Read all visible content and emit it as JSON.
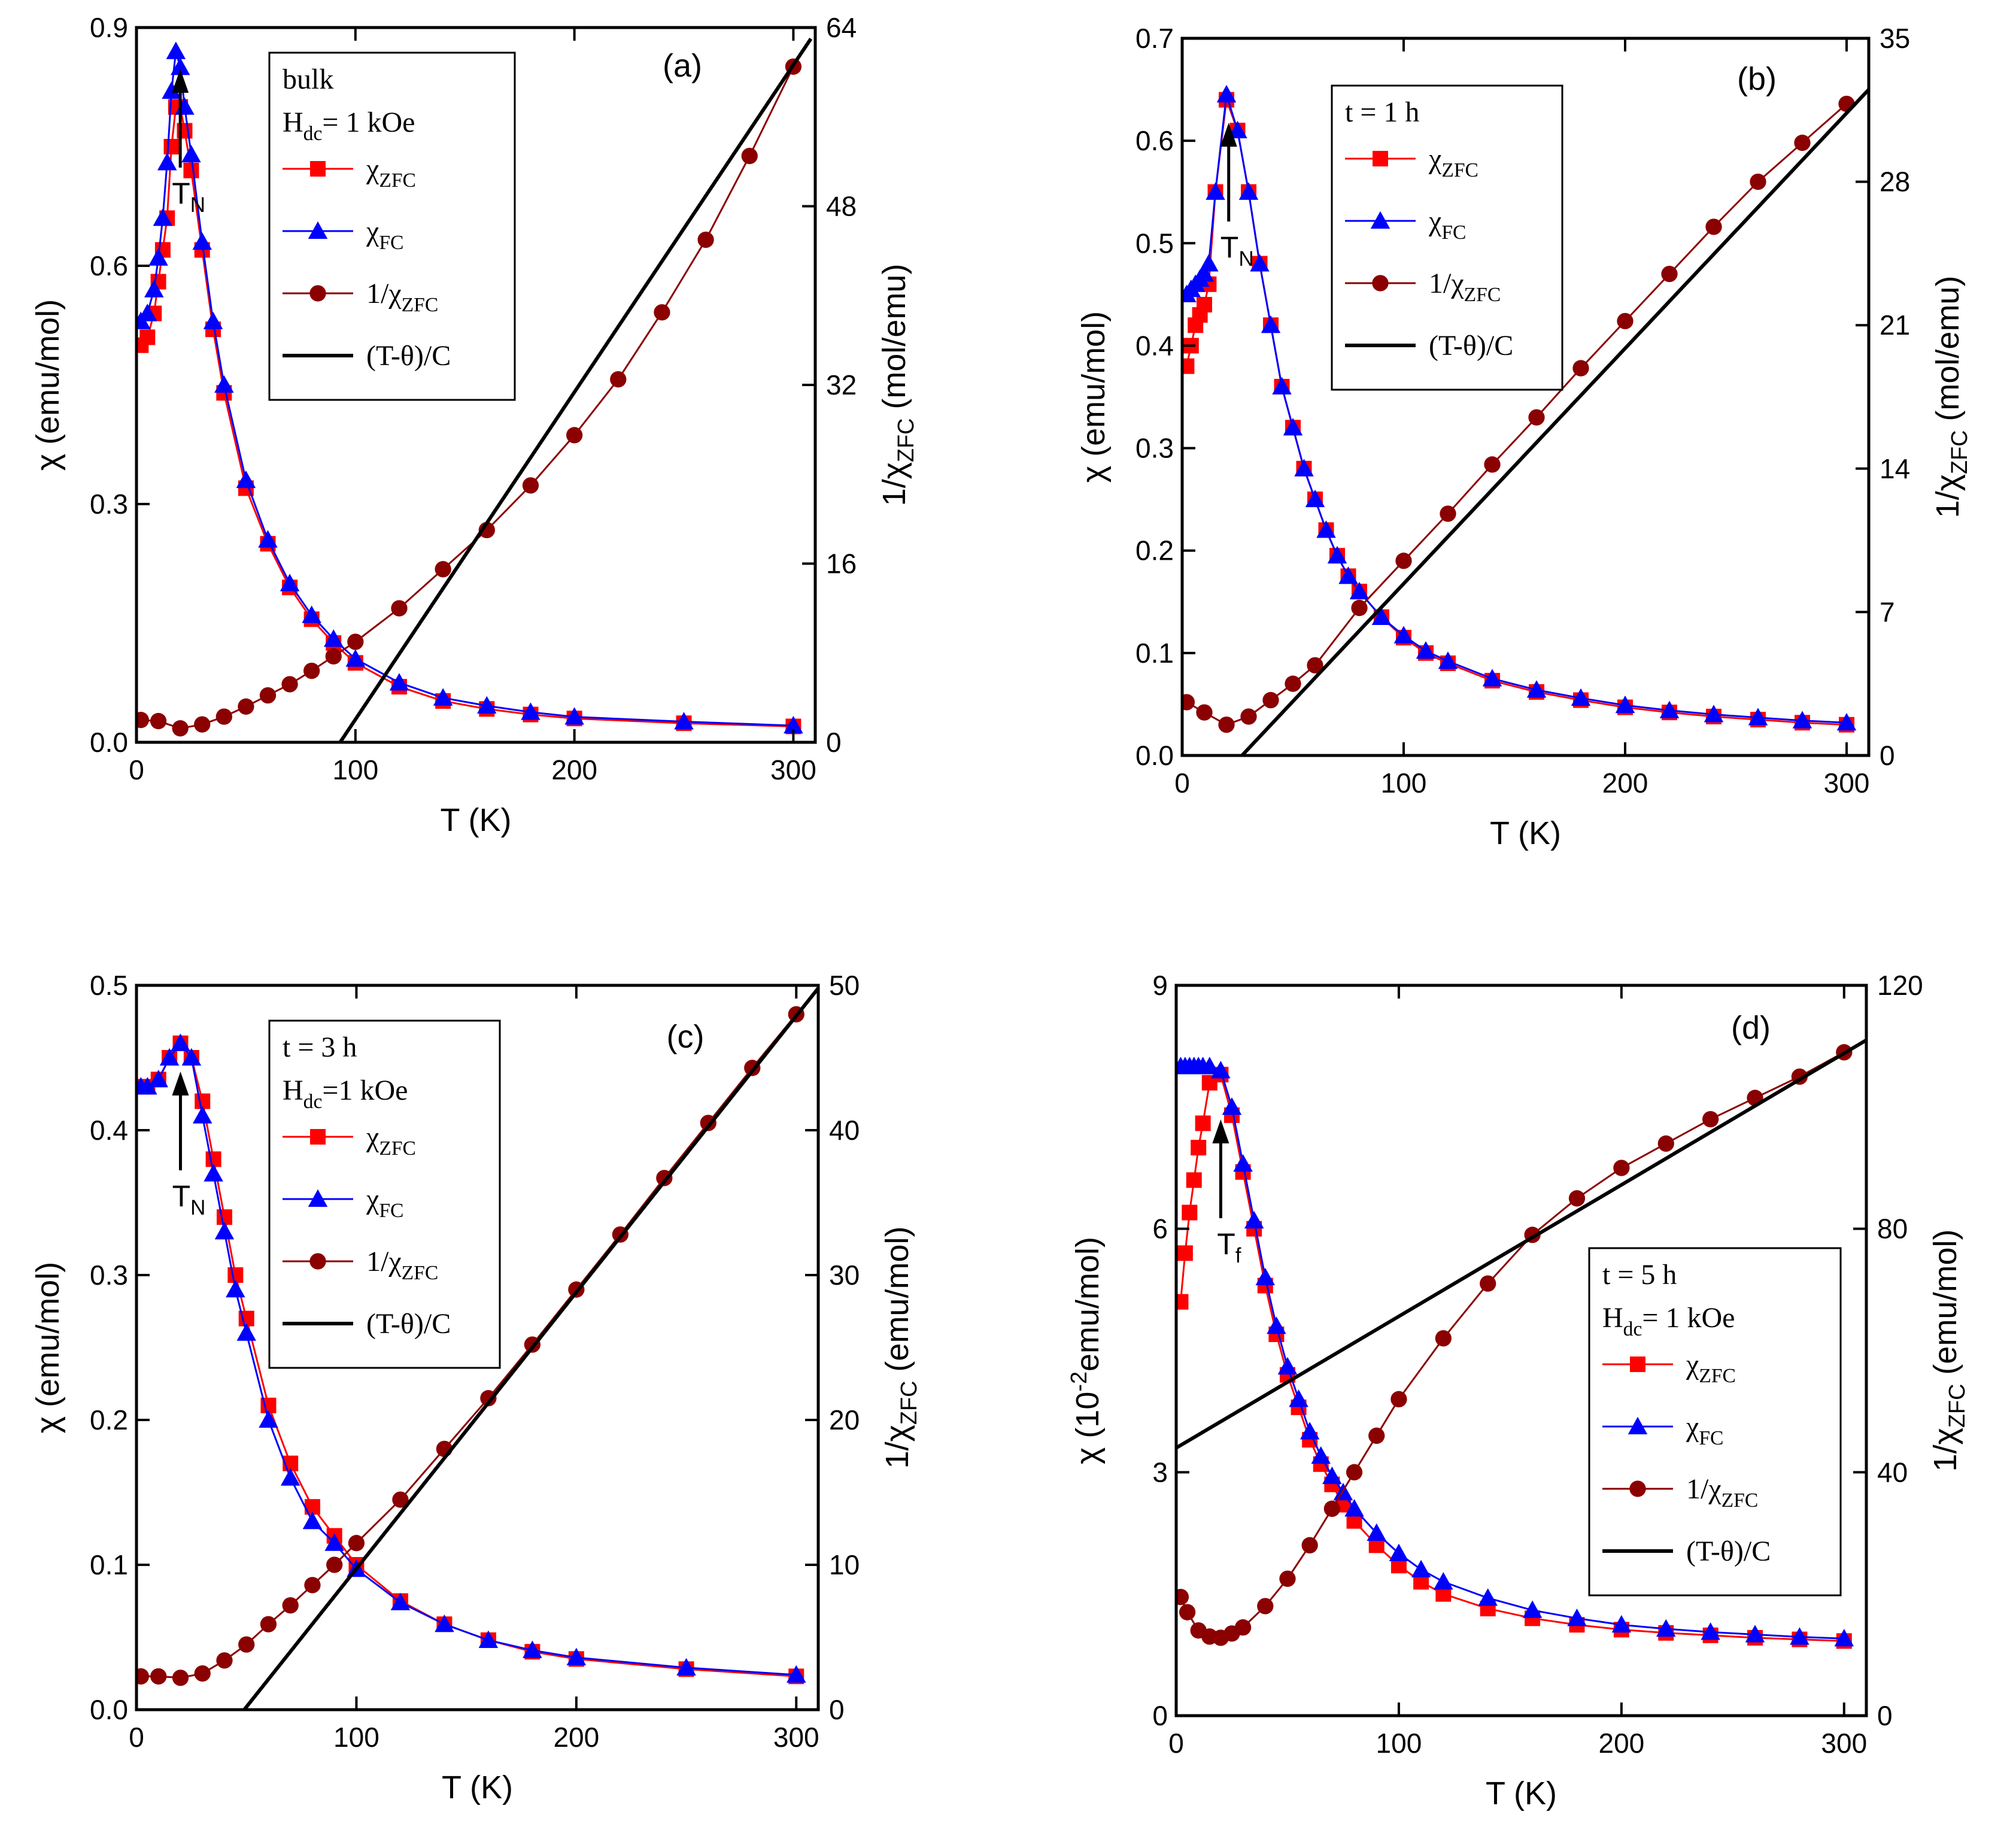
{
  "chart_data": [
    {
      "id": "a",
      "type": "scatter",
      "panel_label": "(a)",
      "xlabel": "T  (K)",
      "ylabel": "χ  (emu/mol)",
      "ylabel2": "1/χ_ZFC  (mol/emu)",
      "xlim": [
        0,
        310
      ],
      "ylim": [
        0,
        0.9
      ],
      "y2lim": [
        0,
        64
      ],
      "xticks": [
        0,
        100,
        200,
        300
      ],
      "yticks": [
        "0.0",
        "0.3",
        "0.6",
        "0.9"
      ],
      "yticks_val": [
        0,
        0.3,
        0.6,
        0.9
      ],
      "y2ticks": [
        0,
        16,
        32,
        48,
        64
      ],
      "legend": {
        "lines": [
          "bulk",
          "H_dc= 1 kOe"
        ],
        "entries": [
          "χ_ZFC",
          "χ_FC",
          "1/χ_ZFC",
          "(T-θ)/C"
        ]
      },
      "annotation": {
        "text": "T_N",
        "x": 20
      },
      "series": [
        {
          "name": "χ_ZFC",
          "marker": "square",
          "color": "#ff0000",
          "x": [
            2,
            5,
            8,
            10,
            12,
            14,
            16,
            18,
            20,
            22,
            25,
            30,
            35,
            40,
            50,
            60,
            70,
            80,
            90,
            100,
            120,
            140,
            160,
            180,
            200,
            250,
            300
          ],
          "y": [
            0.5,
            0.51,
            0.54,
            0.58,
            0.62,
            0.66,
            0.75,
            0.8,
            0.8,
            0.77,
            0.72,
            0.62,
            0.52,
            0.44,
            0.32,
            0.25,
            0.195,
            0.155,
            0.125,
            0.1,
            0.07,
            0.052,
            0.042,
            0.035,
            0.03,
            0.024,
            0.02
          ]
        },
        {
          "name": "χ_FC",
          "marker": "triangle",
          "color": "#0000ff",
          "x": [
            2,
            5,
            8,
            10,
            12,
            14,
            16,
            18,
            20,
            22,
            25,
            30,
            35,
            40,
            50,
            60,
            70,
            80,
            90,
            100,
            120,
            140,
            160,
            180,
            200,
            250,
            300
          ],
          "y": [
            0.53,
            0.54,
            0.57,
            0.61,
            0.66,
            0.73,
            0.82,
            0.87,
            0.85,
            0.8,
            0.74,
            0.63,
            0.53,
            0.45,
            0.33,
            0.255,
            0.2,
            0.16,
            0.13,
            0.105,
            0.075,
            0.056,
            0.046,
            0.038,
            0.032,
            0.026,
            0.021
          ]
        },
        {
          "name": "1/χ_ZFC",
          "marker": "circle",
          "color": "#8b0000",
          "axis": "right",
          "x": [
            2,
            10,
            20,
            30,
            40,
            50,
            60,
            70,
            80,
            90,
            100,
            120,
            140,
            160,
            180,
            200,
            220,
            240,
            260,
            280,
            300
          ],
          "y": [
            2.0,
            1.9,
            1.25,
            1.6,
            2.3,
            3.2,
            4.2,
            5.2,
            6.4,
            7.7,
            9.0,
            12.0,
            15.5,
            19.0,
            23.0,
            27.5,
            32.5,
            38.5,
            45.0,
            52.5,
            60.5
          ]
        },
        {
          "name": "(T-θ)/C",
          "marker": "none",
          "color": "#000000",
          "axis": "right",
          "x": [
            93,
            308
          ],
          "y": [
            0,
            63
          ]
        }
      ]
    },
    {
      "id": "b",
      "type": "scatter",
      "panel_label": "(b)",
      "xlabel": "T  (K)",
      "ylabel": "χ  (emu/mol)",
      "ylabel2": "1/χ_ZFC  (mol/emu)",
      "xlim": [
        0,
        310
      ],
      "ylim": [
        0,
        0.7
      ],
      "y2lim": [
        0,
        35
      ],
      "xticks": [
        0,
        100,
        200,
        300
      ],
      "yticks": [
        "0.0",
        "0.1",
        "0.2",
        "0.3",
        "0.4",
        "0.5",
        "0.6",
        "0.7"
      ],
      "yticks_val": [
        0,
        0.1,
        0.2,
        0.3,
        0.4,
        0.5,
        0.6,
        0.7
      ],
      "y2ticks": [
        0,
        7,
        14,
        21,
        28,
        35
      ],
      "legend": {
        "lines": [
          "t = 1 h"
        ],
        "entries": [
          "χ_ZFC",
          "χ_FC",
          "1/χ_ZFC",
          "(T-θ)/C"
        ]
      },
      "annotation": {
        "text": "T_N",
        "x": 21
      },
      "series": [
        {
          "name": "χ_ZFC",
          "marker": "square",
          "color": "#ff0000",
          "x": [
            2,
            4,
            6,
            8,
            10,
            12,
            15,
            20,
            25,
            30,
            35,
            40,
            45,
            50,
            55,
            60,
            65,
            70,
            75,
            80,
            90,
            100,
            110,
            120,
            140,
            160,
            180,
            200,
            220,
            240,
            260,
            280,
            300
          ],
          "y": [
            0.38,
            0.4,
            0.42,
            0.43,
            0.44,
            0.46,
            0.55,
            0.64,
            0.61,
            0.55,
            0.48,
            0.42,
            0.36,
            0.32,
            0.28,
            0.25,
            0.22,
            0.195,
            0.175,
            0.16,
            0.135,
            0.115,
            0.1,
            0.09,
            0.073,
            0.062,
            0.054,
            0.047,
            0.042,
            0.038,
            0.035,
            0.032,
            0.03
          ]
        },
        {
          "name": "χ_FC",
          "marker": "triangle",
          "color": "#0000ff",
          "x": [
            2,
            4,
            6,
            8,
            10,
            12,
            15,
            20,
            25,
            30,
            35,
            40,
            45,
            50,
            55,
            60,
            65,
            70,
            75,
            80,
            90,
            100,
            110,
            120,
            140,
            160,
            180,
            200,
            220,
            240,
            260,
            280,
            300
          ],
          "y": [
            0.45,
            0.455,
            0.46,
            0.465,
            0.47,
            0.48,
            0.55,
            0.645,
            0.61,
            0.55,
            0.48,
            0.42,
            0.36,
            0.32,
            0.28,
            0.25,
            0.22,
            0.195,
            0.175,
            0.16,
            0.135,
            0.117,
            0.102,
            0.092,
            0.075,
            0.064,
            0.056,
            0.049,
            0.044,
            0.04,
            0.037,
            0.034,
            0.032
          ]
        },
        {
          "name": "1/χ_ZFC",
          "marker": "circle",
          "color": "#8b0000",
          "axis": "right",
          "x": [
            2,
            10,
            20,
            30,
            40,
            50,
            60,
            80,
            100,
            120,
            140,
            160,
            180,
            200,
            220,
            240,
            260,
            280,
            300
          ],
          "y": [
            2.6,
            2.1,
            1.5,
            1.9,
            2.7,
            3.5,
            4.4,
            7.2,
            9.5,
            11.8,
            14.2,
            16.5,
            18.9,
            21.2,
            23.5,
            25.8,
            28.0,
            29.9,
            31.8
          ]
        },
        {
          "name": "(T-θ)/C",
          "marker": "none",
          "color": "#000000",
          "axis": "right",
          "x": [
            27,
            310
          ],
          "y": [
            0,
            32.5
          ]
        }
      ]
    },
    {
      "id": "c",
      "type": "scatter",
      "panel_label": "(c)",
      "xlabel": "T  (K)",
      "ylabel": "χ  (emu/mol)",
      "ylabel2": "1/χ_ZFC  (emu/mol)",
      "xlim": [
        0,
        310
      ],
      "ylim": [
        0,
        0.5
      ],
      "y2lim": [
        0,
        50
      ],
      "xticks": [
        0,
        100,
        200,
        300
      ],
      "yticks": [
        "0.0",
        "0.1",
        "0.2",
        "0.3",
        "0.4",
        "0.5"
      ],
      "yticks_val": [
        0,
        0.1,
        0.2,
        0.3,
        0.4,
        0.5
      ],
      "y2ticks": [
        0,
        10,
        20,
        30,
        40,
        50
      ],
      "legend": {
        "lines": [
          "t = 3 h",
          "H_dc=1 kOe"
        ],
        "entries": [
          "χ_ZFC",
          "χ_FC",
          "1/χ_ZFC",
          "(T-θ)/C"
        ]
      },
      "annotation": {
        "text": "T_N",
        "x": 20
      },
      "series": [
        {
          "name": "χ_ZFC",
          "marker": "square",
          "color": "#ff0000",
          "x": [
            2,
            5,
            10,
            15,
            20,
            25,
            30,
            35,
            40,
            45,
            50,
            60,
            70,
            80,
            90,
            100,
            120,
            140,
            160,
            180,
            200,
            250,
            300
          ],
          "y": [
            0.43,
            0.43,
            0.435,
            0.45,
            0.46,
            0.45,
            0.42,
            0.38,
            0.34,
            0.3,
            0.27,
            0.21,
            0.17,
            0.14,
            0.12,
            0.1,
            0.075,
            0.059,
            0.048,
            0.04,
            0.035,
            0.028,
            0.023
          ]
        },
        {
          "name": "χ_FC",
          "marker": "triangle",
          "color": "#0000ff",
          "x": [
            2,
            5,
            10,
            15,
            20,
            25,
            30,
            35,
            40,
            45,
            50,
            60,
            70,
            80,
            90,
            100,
            120,
            140,
            160,
            180,
            200,
            250,
            300
          ],
          "y": [
            0.43,
            0.43,
            0.435,
            0.45,
            0.46,
            0.45,
            0.41,
            0.37,
            0.33,
            0.29,
            0.26,
            0.2,
            0.16,
            0.13,
            0.115,
            0.097,
            0.074,
            0.059,
            0.048,
            0.041,
            0.036,
            0.029,
            0.024
          ]
        },
        {
          "name": "1/χ_ZFC",
          "marker": "circle",
          "color": "#8b0000",
          "axis": "right",
          "x": [
            2,
            10,
            20,
            30,
            40,
            50,
            60,
            70,
            80,
            90,
            100,
            120,
            140,
            160,
            180,
            200,
            220,
            240,
            260,
            280,
            300
          ],
          "y": [
            2.3,
            2.3,
            2.2,
            2.5,
            3.4,
            4.5,
            5.9,
            7.2,
            8.6,
            10.0,
            11.5,
            14.5,
            18.0,
            21.5,
            25.2,
            29.0,
            32.8,
            36.7,
            40.5,
            44.3,
            48.0
          ]
        },
        {
          "name": "(T-θ)/C",
          "marker": "none",
          "color": "#000000",
          "axis": "right",
          "x": [
            49,
            310
          ],
          "y": [
            0,
            49.8
          ]
        }
      ]
    },
    {
      "id": "d",
      "type": "scatter",
      "panel_label": "(d)",
      "xlabel": "T  (K)",
      "ylabel": "χ  (10^-2emu/mol)",
      "ylabel2": "1/χ_ZFC  (emu/mol)",
      "xlim": [
        0,
        310
      ],
      "ylim": [
        0,
        9
      ],
      "y2lim": [
        0,
        120
      ],
      "xticks": [
        0,
        100,
        200,
        300
      ],
      "yticks": [
        "0",
        "3",
        "6",
        "9"
      ],
      "yticks_val": [
        0,
        3,
        6,
        9
      ],
      "y2ticks": [
        0,
        40,
        80,
        120
      ],
      "legend": {
        "lines": [
          "t = 5 h",
          "H_dc= 1 kOe"
        ],
        "entries": [
          "χ_ZFC",
          "χ_FC",
          "1/χ_ZFC",
          "(T-θ)/C"
        ]
      },
      "annotation": {
        "text": "T_f",
        "x": 20
      },
      "series": [
        {
          "name": "χ_ZFC",
          "marker": "square",
          "color": "#ff0000",
          "x": [
            2,
            4,
            6,
            8,
            10,
            12,
            15,
            20,
            25,
            30,
            35,
            40,
            45,
            50,
            55,
            60,
            65,
            70,
            75,
            80,
            90,
            100,
            110,
            120,
            140,
            160,
            180,
            200,
            220,
            240,
            260,
            280,
            300
          ],
          "y": [
            5.1,
            5.7,
            6.2,
            6.6,
            7.0,
            7.3,
            7.8,
            7.9,
            7.4,
            6.7,
            6.0,
            5.3,
            4.7,
            4.2,
            3.8,
            3.4,
            3.1,
            2.85,
            2.6,
            2.4,
            2.1,
            1.85,
            1.65,
            1.5,
            1.32,
            1.2,
            1.12,
            1.06,
            1.02,
            0.99,
            0.96,
            0.94,
            0.92
          ]
        },
        {
          "name": "χ_FC",
          "marker": "triangle",
          "color": "#0000ff",
          "x": [
            2,
            4,
            6,
            8,
            10,
            12,
            15,
            20,
            25,
            30,
            35,
            40,
            45,
            50,
            55,
            60,
            65,
            70,
            75,
            80,
            90,
            100,
            110,
            120,
            140,
            160,
            180,
            200,
            220,
            240,
            260,
            280,
            300
          ],
          "y": [
            8.0,
            8.0,
            8.0,
            8.0,
            8.0,
            8.0,
            8.0,
            7.95,
            7.5,
            6.8,
            6.1,
            5.4,
            4.8,
            4.3,
            3.9,
            3.5,
            3.2,
            2.95,
            2.75,
            2.55,
            2.25,
            2.0,
            1.8,
            1.65,
            1.45,
            1.3,
            1.2,
            1.12,
            1.07,
            1.03,
            1.0,
            0.97,
            0.95
          ]
        },
        {
          "name": "1/χ_ZFC",
          "marker": "circle",
          "color": "#8b0000",
          "axis": "right",
          "x": [
            2,
            5,
            10,
            15,
            20,
            25,
            30,
            40,
            50,
            60,
            70,
            80,
            90,
            100,
            120,
            140,
            160,
            180,
            200,
            220,
            240,
            260,
            280,
            300
          ],
          "y": [
            19.5,
            17.0,
            14.0,
            13.0,
            12.8,
            13.5,
            14.5,
            18.0,
            22.5,
            28.0,
            34.0,
            40.0,
            46.0,
            52.0,
            62.0,
            71.0,
            79.0,
            85.0,
            90.0,
            94.0,
            98.0,
            101.5,
            105.0,
            109.0
          ]
        },
        {
          "name": "(T-θ)/C",
          "marker": "none",
          "color": "#000000",
          "axis": "right",
          "x": [
            0,
            310
          ],
          "y": [
            44,
            111
          ]
        }
      ]
    }
  ]
}
